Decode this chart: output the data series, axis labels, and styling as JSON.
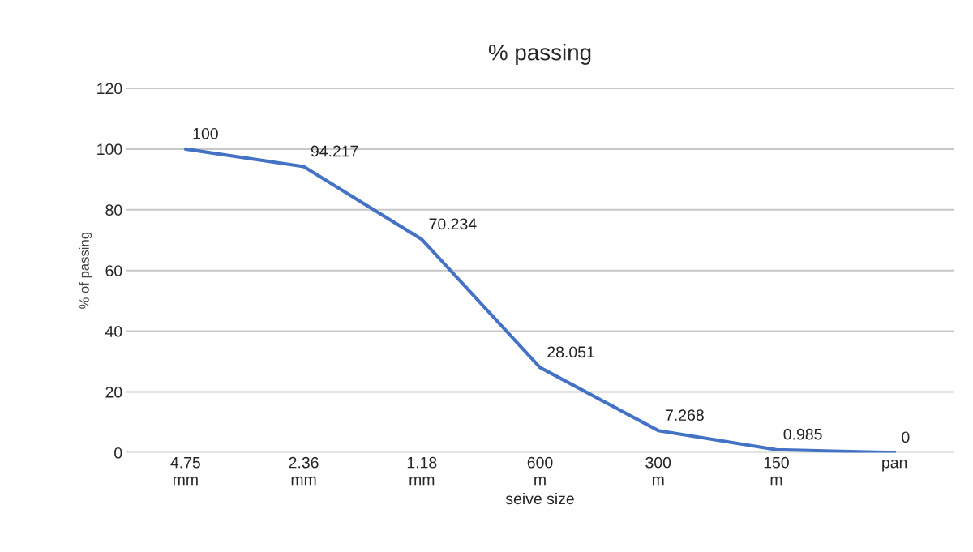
{
  "chart_data": {
    "type": "line",
    "title": "% passing",
    "xlabel": "seive size",
    "ylabel": "% of passing",
    "categories": [
      "4.75 mm",
      "2.36 mm",
      "1.18 mm",
      "600 m",
      "300 m",
      "150 m",
      "pan"
    ],
    "series": [
      {
        "color": "#4472c4",
        "values": [
          100,
          94.217,
          70.234,
          28.051,
          7.268,
          0.985,
          0
        ]
      }
    ],
    "ylim": [
      0,
      120
    ],
    "yticks": [
      0,
      20,
      40,
      60,
      80,
      100,
      120
    ],
    "grid": "y",
    "data_labels": true,
    "marker": "none",
    "line_style": "solid"
  }
}
